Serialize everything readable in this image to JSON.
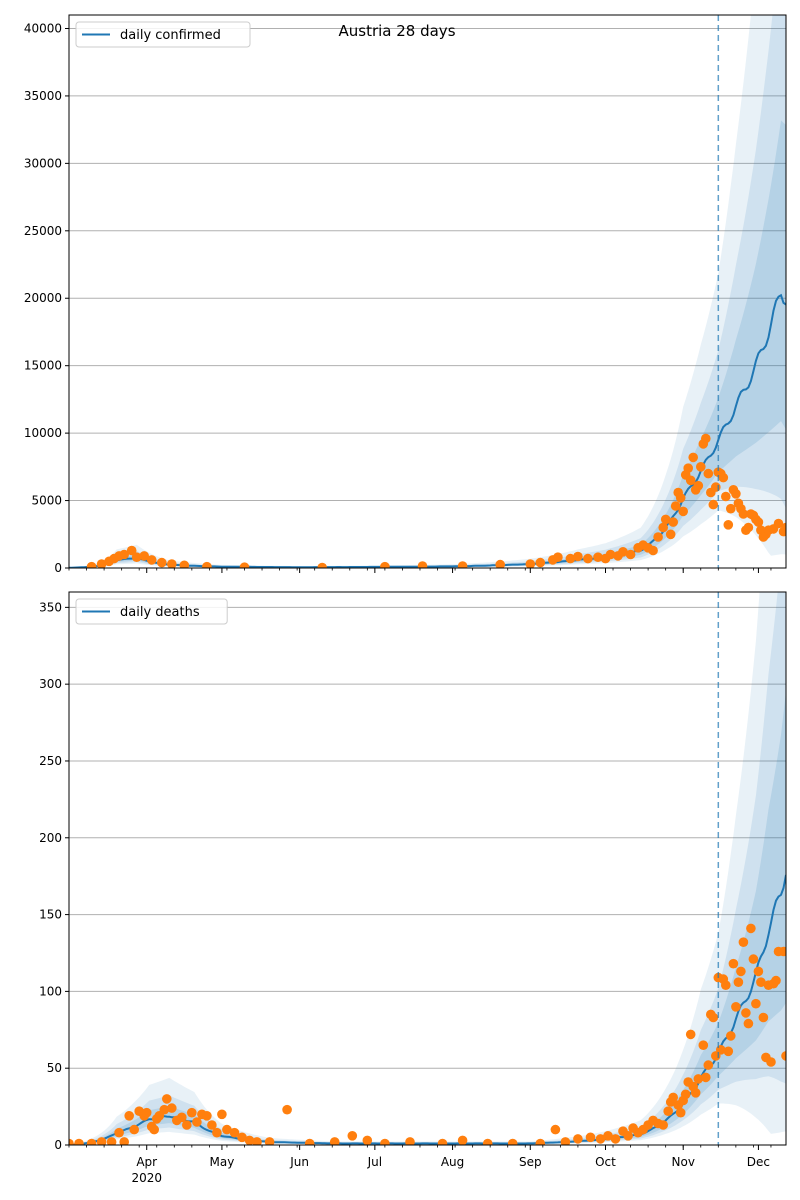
{
  "figure_title": "Austria 28 days",
  "colors": {
    "line": "#1f77b4",
    "points": "#ff7f0e",
    "band": "#1f77b4",
    "grid": "#b0b0b0",
    "vline": "#1f77b4"
  },
  "x_axis": {
    "month_ticks": [
      "Apr",
      "May",
      "Jun",
      "Jul",
      "Aug",
      "Sep",
      "Oct",
      "Nov",
      "Dec"
    ],
    "year_label": "2020",
    "start_day": "2020-03-01",
    "end_day": "2020-12-12",
    "forecast_start": "2020-11-15"
  },
  "chart_data": [
    {
      "type": "line",
      "title": "Austria 28 days",
      "series": [
        {
          "name": "daily confirmed"
        }
      ],
      "legend": "top-left",
      "grid": true,
      "ylim": [
        0,
        41000
      ],
      "yticks": [
        0,
        5000,
        10000,
        15000,
        20000,
        25000,
        30000,
        35000,
        40000
      ],
      "model_keypoints": [
        [
          "2020-03-01",
          20
        ],
        [
          "2020-03-20",
          600
        ],
        [
          "2020-03-28",
          750
        ],
        [
          "2020-04-10",
          250
        ],
        [
          "2020-05-01",
          100
        ],
        [
          "2020-06-01",
          60
        ],
        [
          "2020-07-01",
          80
        ],
        [
          "2020-08-01",
          120
        ],
        [
          "2020-09-01",
          300
        ],
        [
          "2020-09-20",
          600
        ],
        [
          "2020-10-01",
          800
        ],
        [
          "2020-10-15",
          1300
        ],
        [
          "2020-10-25",
          3000
        ],
        [
          "2020-11-01",
          5200
        ],
        [
          "2020-11-08",
          7200
        ],
        [
          "2020-11-15",
          9500
        ],
        [
          "2020-11-22",
          12000
        ],
        [
          "2020-11-30",
          15000
        ],
        [
          "2020-12-05",
          17500
        ],
        [
          "2020-12-10",
          20500
        ],
        [
          "2020-12-12",
          20000
        ]
      ],
      "observed_points": [
        [
          "2020-03-10",
          100
        ],
        [
          "2020-03-14",
          300
        ],
        [
          "2020-03-17",
          500
        ],
        [
          "2020-03-19",
          700
        ],
        [
          "2020-03-21",
          900
        ],
        [
          "2020-03-23",
          1000
        ],
        [
          "2020-03-26",
          1300
        ],
        [
          "2020-03-28",
          800
        ],
        [
          "2020-03-31",
          900
        ],
        [
          "2020-04-03",
          600
        ],
        [
          "2020-04-07",
          400
        ],
        [
          "2020-04-11",
          300
        ],
        [
          "2020-04-16",
          200
        ],
        [
          "2020-04-25",
          100
        ],
        [
          "2020-05-10",
          60
        ],
        [
          "2020-06-10",
          40
        ],
        [
          "2020-07-05",
          100
        ],
        [
          "2020-07-20",
          150
        ],
        [
          "2020-08-05",
          150
        ],
        [
          "2020-08-20",
          250
        ],
        [
          "2020-09-01",
          300
        ],
        [
          "2020-09-05",
          400
        ],
        [
          "2020-09-10",
          600
        ],
        [
          "2020-09-12",
          800
        ],
        [
          "2020-09-17",
          700
        ],
        [
          "2020-09-20",
          850
        ],
        [
          "2020-09-24",
          700
        ],
        [
          "2020-09-28",
          800
        ],
        [
          "2020-10-01",
          700
        ],
        [
          "2020-10-03",
          1000
        ],
        [
          "2020-10-06",
          900
        ],
        [
          "2020-10-08",
          1200
        ],
        [
          "2020-10-11",
          1000
        ],
        [
          "2020-10-14",
          1500
        ],
        [
          "2020-10-16",
          1700
        ],
        [
          "2020-10-18",
          1500
        ],
        [
          "2020-10-20",
          1300
        ],
        [
          "2020-10-22",
          2300
        ],
        [
          "2020-10-24",
          3000
        ],
        [
          "2020-10-25",
          3600
        ],
        [
          "2020-10-27",
          2500
        ],
        [
          "2020-10-28",
          3400
        ],
        [
          "2020-10-29",
          4600
        ],
        [
          "2020-10-30",
          5600
        ],
        [
          "2020-10-31",
          5200
        ],
        [
          "2020-11-01",
          4200
        ],
        [
          "2020-11-02",
          6900
        ],
        [
          "2020-11-03",
          7400
        ],
        [
          "2020-11-04",
          6500
        ],
        [
          "2020-11-05",
          8200
        ],
        [
          "2020-11-06",
          5800
        ],
        [
          "2020-11-07",
          6100
        ],
        [
          "2020-11-08",
          7500
        ],
        [
          "2020-11-09",
          9200
        ],
        [
          "2020-11-10",
          9600
        ],
        [
          "2020-11-11",
          7000
        ],
        [
          "2020-11-12",
          5600
        ],
        [
          "2020-11-13",
          4700
        ],
        [
          "2020-11-14",
          6000
        ],
        [
          "2020-11-15",
          7100
        ],
        [
          "2020-11-16",
          7000
        ],
        [
          "2020-11-17",
          6700
        ],
        [
          "2020-11-18",
          5300
        ],
        [
          "2020-11-19",
          3200
        ],
        [
          "2020-11-20",
          4400
        ],
        [
          "2020-11-21",
          5800
        ],
        [
          "2020-11-22",
          5500
        ],
        [
          "2020-11-23",
          4800
        ],
        [
          "2020-11-24",
          4400
        ],
        [
          "2020-11-25",
          4000
        ],
        [
          "2020-11-26",
          2800
        ],
        [
          "2020-11-27",
          3000
        ],
        [
          "2020-11-28",
          4000
        ],
        [
          "2020-11-29",
          3900
        ],
        [
          "2020-11-30",
          3600
        ],
        [
          "2020-12-01",
          3400
        ],
        [
          "2020-12-02",
          2800
        ],
        [
          "2020-12-03",
          2300
        ],
        [
          "2020-12-04",
          2500
        ],
        [
          "2020-12-05",
          2800
        ],
        [
          "2020-12-07",
          2900
        ],
        [
          "2020-12-09",
          3300
        ],
        [
          "2020-12-11",
          2700
        ],
        [
          "2020-12-12",
          3000
        ]
      ]
    },
    {
      "type": "line",
      "series": [
        {
          "name": "daily deaths"
        }
      ],
      "legend": "top-left",
      "grid": true,
      "ylim": [
        0,
        360
      ],
      "yticks": [
        0,
        50,
        100,
        150,
        200,
        250,
        300,
        350
      ],
      "model_keypoints": [
        [
          "2020-03-01",
          0
        ],
        [
          "2020-03-20",
          8
        ],
        [
          "2020-04-02",
          17
        ],
        [
          "2020-04-10",
          19
        ],
        [
          "2020-04-20",
          15
        ],
        [
          "2020-05-01",
          6
        ],
        [
          "2020-05-20",
          2
        ],
        [
          "2020-06-15",
          1
        ],
        [
          "2020-08-01",
          1
        ],
        [
          "2020-09-01",
          1
        ],
        [
          "2020-09-25",
          3
        ],
        [
          "2020-10-15",
          7
        ],
        [
          "2020-10-25",
          16
        ],
        [
          "2020-11-01",
          27
        ],
        [
          "2020-11-08",
          44
        ],
        [
          "2020-11-15",
          60
        ],
        [
          "2020-11-22",
          82
        ],
        [
          "2020-11-30",
          110
        ],
        [
          "2020-12-05",
          140
        ],
        [
          "2020-12-10",
          165
        ],
        [
          "2020-12-12",
          180
        ]
      ],
      "observed_points": [
        [
          "2020-03-01",
          1
        ],
        [
          "2020-03-05",
          1
        ],
        [
          "2020-03-10",
          1
        ],
        [
          "2020-03-14",
          2
        ],
        [
          "2020-03-18",
          2
        ],
        [
          "2020-03-21",
          8
        ],
        [
          "2020-03-23",
          2
        ],
        [
          "2020-03-25",
          19
        ],
        [
          "2020-03-27",
          10
        ],
        [
          "2020-03-29",
          22
        ],
        [
          "2020-03-31",
          19
        ],
        [
          "2020-04-01",
          21
        ],
        [
          "2020-04-03",
          12
        ],
        [
          "2020-04-04",
          10
        ],
        [
          "2020-04-05",
          17
        ],
        [
          "2020-04-06",
          19
        ],
        [
          "2020-04-08",
          23
        ],
        [
          "2020-04-09",
          30
        ],
        [
          "2020-04-11",
          24
        ],
        [
          "2020-04-13",
          16
        ],
        [
          "2020-04-15",
          18
        ],
        [
          "2020-04-17",
          13
        ],
        [
          "2020-04-19",
          21
        ],
        [
          "2020-04-21",
          15
        ],
        [
          "2020-04-23",
          20
        ],
        [
          "2020-04-25",
          19
        ],
        [
          "2020-04-27",
          13
        ],
        [
          "2020-04-29",
          8
        ],
        [
          "2020-05-01",
          20
        ],
        [
          "2020-05-03",
          10
        ],
        [
          "2020-05-06",
          8
        ],
        [
          "2020-05-09",
          5
        ],
        [
          "2020-05-12",
          3
        ],
        [
          "2020-05-15",
          2
        ],
        [
          "2020-05-20",
          2
        ],
        [
          "2020-05-27",
          23
        ],
        [
          "2020-06-05",
          1
        ],
        [
          "2020-06-15",
          2
        ],
        [
          "2020-06-22",
          6
        ],
        [
          "2020-06-28",
          3
        ],
        [
          "2020-07-05",
          1
        ],
        [
          "2020-07-15",
          2
        ],
        [
          "2020-07-28",
          1
        ],
        [
          "2020-08-05",
          3
        ],
        [
          "2020-08-15",
          1
        ],
        [
          "2020-08-25",
          1
        ],
        [
          "2020-09-05",
          1
        ],
        [
          "2020-09-11",
          10
        ],
        [
          "2020-09-15",
          2
        ],
        [
          "2020-09-20",
          4
        ],
        [
          "2020-09-25",
          5
        ],
        [
          "2020-09-29",
          4
        ],
        [
          "2020-10-02",
          6
        ],
        [
          "2020-10-05",
          4
        ],
        [
          "2020-10-08",
          9
        ],
        [
          "2020-10-10",
          6
        ],
        [
          "2020-10-12",
          11
        ],
        [
          "2020-10-14",
          8
        ],
        [
          "2020-10-16",
          10
        ],
        [
          "2020-10-18",
          13
        ],
        [
          "2020-10-20",
          16
        ],
        [
          "2020-10-22",
          14
        ],
        [
          "2020-10-24",
          13
        ],
        [
          "2020-10-26",
          22
        ],
        [
          "2020-10-27",
          28
        ],
        [
          "2020-10-28",
          31
        ],
        [
          "2020-10-30",
          26
        ],
        [
          "2020-10-31",
          21
        ],
        [
          "2020-11-01",
          29
        ],
        [
          "2020-11-02",
          33
        ],
        [
          "2020-11-03",
          41
        ],
        [
          "2020-11-04",
          72
        ],
        [
          "2020-11-05",
          38
        ],
        [
          "2020-11-06",
          34
        ],
        [
          "2020-11-07",
          43
        ],
        [
          "2020-11-09",
          65
        ],
        [
          "2020-11-10",
          44
        ],
        [
          "2020-11-11",
          52
        ],
        [
          "2020-11-12",
          85
        ],
        [
          "2020-11-13",
          83
        ],
        [
          "2020-11-14",
          58
        ],
        [
          "2020-11-15",
          109
        ],
        [
          "2020-11-16",
          62
        ],
        [
          "2020-11-17",
          108
        ],
        [
          "2020-11-18",
          104
        ],
        [
          "2020-11-19",
          61
        ],
        [
          "2020-11-20",
          71
        ],
        [
          "2020-11-21",
          118
        ],
        [
          "2020-11-22",
          90
        ],
        [
          "2020-11-23",
          106
        ],
        [
          "2020-11-24",
          113
        ],
        [
          "2020-11-25",
          132
        ],
        [
          "2020-11-26",
          86
        ],
        [
          "2020-11-27",
          79
        ],
        [
          "2020-11-28",
          141
        ],
        [
          "2020-11-29",
          121
        ],
        [
          "2020-11-30",
          92
        ],
        [
          "2020-12-01",
          113
        ],
        [
          "2020-12-02",
          106
        ],
        [
          "2020-12-03",
          83
        ],
        [
          "2020-12-04",
          57
        ],
        [
          "2020-12-05",
          104
        ],
        [
          "2020-12-06",
          54
        ],
        [
          "2020-12-07",
          105
        ],
        [
          "2020-12-08",
          107
        ],
        [
          "2020-12-09",
          126
        ],
        [
          "2020-12-11",
          126
        ],
        [
          "2020-12-12",
          58
        ]
      ]
    }
  ]
}
